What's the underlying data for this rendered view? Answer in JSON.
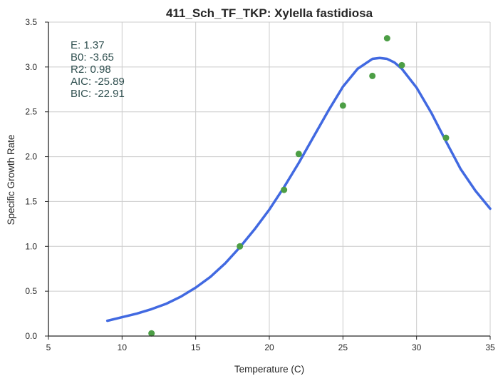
{
  "chart_data": {
    "type": "scatter",
    "title": "411_Sch_TF_TKP: Xylella fastidiosa",
    "xlabel": "Temperature (C)",
    "ylabel": "Specific Growth Rate",
    "xlim": [
      5,
      35
    ],
    "ylim": [
      0,
      3.5
    ],
    "xticks": [
      "5",
      "10",
      "15",
      "20",
      "25",
      "30",
      "35"
    ],
    "yticks": [
      "0.0",
      "0.5",
      "1.0",
      "1.5",
      "2.0",
      "2.5",
      "3.0",
      "3.5"
    ],
    "grid": true,
    "stats": [
      "E:  1.37",
      "B0:  -3.65",
      "R2:  0.98",
      "AIC: -25.89",
      "BIC: -22.91"
    ],
    "colors": {
      "points": "#4c9e45",
      "curve": "#4169e1",
      "stats_text": "#2f4f4f",
      "grid": "#cccccc"
    },
    "series": [
      {
        "kind": "points",
        "x": [
          12,
          18,
          21,
          22,
          25,
          27,
          28,
          29,
          32
        ],
        "y": [
          0.03,
          1.0,
          1.63,
          2.03,
          2.57,
          2.9,
          3.32,
          3.02,
          2.21
        ]
      },
      {
        "kind": "fitted-curve",
        "x": [
          9,
          10,
          11,
          12,
          13,
          14,
          15,
          16,
          17,
          18,
          19,
          20,
          21,
          22,
          23,
          24,
          25,
          26,
          27,
          27.5,
          28,
          28.5,
          29,
          30,
          31,
          32,
          33,
          34,
          35
        ],
        "y": [
          0.17,
          0.21,
          0.25,
          0.3,
          0.36,
          0.44,
          0.54,
          0.66,
          0.81,
          0.99,
          1.19,
          1.41,
          1.66,
          1.93,
          2.22,
          2.51,
          2.78,
          2.98,
          3.09,
          3.1,
          3.09,
          3.05,
          2.98,
          2.77,
          2.49,
          2.17,
          1.86,
          1.62,
          1.42
        ]
      }
    ]
  }
}
